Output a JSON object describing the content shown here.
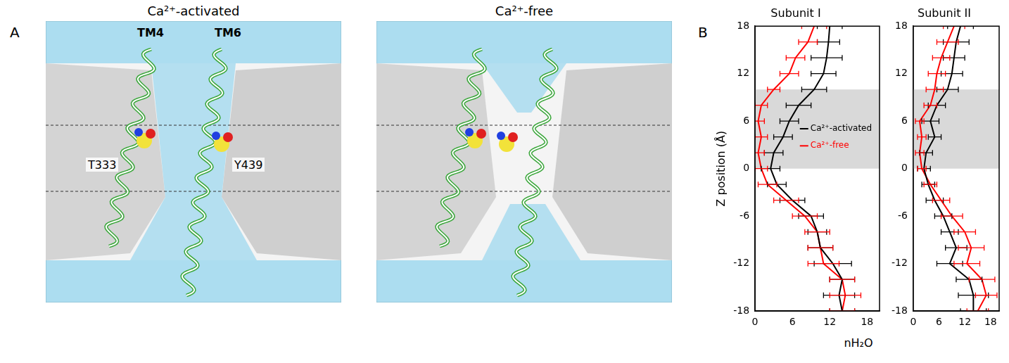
{
  "panel_a": {
    "label": "A",
    "images": [
      {
        "title": "Ca²⁺-activated",
        "helix_labels": [
          "TM4",
          "TM6"
        ],
        "residue_labels": [
          "T333",
          "Y439"
        ]
      },
      {
        "title": "Ca²⁺-free"
      }
    ]
  },
  "panel_b": {
    "label": "B",
    "xlabel": "nH₂O"
  },
  "chart_data": [
    {
      "type": "line",
      "title": "Subunit I",
      "ylabel": "Z position (Å)",
      "y": [
        18,
        16,
        14,
        12,
        10,
        8,
        6,
        4,
        2,
        0,
        -2,
        -4,
        -6,
        -8,
        -10,
        -12,
        -14,
        -16,
        -18
      ],
      "xlim": [
        0,
        20
      ],
      "xticks": [
        0,
        6,
        12,
        18
      ],
      "ylim": [
        -18,
        18
      ],
      "yticks": [
        -18,
        -12,
        -6,
        0,
        6,
        12,
        18
      ],
      "highlight_yrange": [
        0,
        10
      ],
      "legend": "right",
      "series": [
        {
          "name": "Ca²⁺-activated",
          "color": "#000000",
          "values": [
            12,
            11.8,
            11.5,
            11,
            9.5,
            7,
            5.5,
            4.5,
            3,
            2.5,
            3.5,
            6,
            9,
            10,
            10.5,
            12.5,
            14,
            13.5,
            14
          ],
          "errors": [
            2,
            1.8,
            2.5,
            2,
            2,
            2,
            1.5,
            1.5,
            1.5,
            1.5,
            1.5,
            2,
            2,
            1.5,
            2,
            3,
            2,
            2.5,
            2
          ]
        },
        {
          "name": "Ca²⁺-free",
          "color": "#ff0000",
          "values": [
            9.5,
            8.5,
            6.5,
            5.5,
            3,
            1,
            0.5,
            1,
            0.5,
            1,
            2,
            5,
            8,
            10,
            10.5,
            11,
            14,
            14.5,
            14
          ],
          "errors": [
            2,
            1.5,
            1.5,
            1.5,
            1,
            1,
            1,
            1,
            1,
            1,
            1.5,
            2,
            2,
            2,
            2,
            2.5,
            2,
            2.5,
            2
          ]
        }
      ]
    },
    {
      "type": "line",
      "title": "Subunit II",
      "y": [
        18,
        16,
        14,
        12,
        10,
        8,
        6,
        4,
        2,
        0,
        -2,
        -4,
        -6,
        -8,
        -10,
        -12,
        -14,
        -16,
        -18
      ],
      "xlim": [
        0,
        20
      ],
      "xticks": [
        0,
        6,
        12,
        18
      ],
      "ylim": [
        -18,
        18
      ],
      "yticks": [
        -18,
        -12,
        -6,
        0,
        6,
        12,
        18
      ],
      "highlight_yrange": [
        0,
        10
      ],
      "series": [
        {
          "name": "Ca²⁺-activated",
          "color": "#000000",
          "values": [
            11,
            10,
            9.5,
            9,
            8,
            5.5,
            4,
            5,
            3,
            2.5,
            3.5,
            5,
            7,
            8.5,
            10,
            8.5,
            13,
            14,
            14
          ],
          "errors": [
            3,
            3,
            2.5,
            2.5,
            2.5,
            2,
            2,
            1.5,
            1.5,
            1.5,
            1.5,
            2,
            2,
            2,
            2.5,
            3,
            3,
            3.5,
            3
          ]
        },
        {
          "name": "Ca²⁺-free",
          "color": "#ff0000",
          "values": [
            9.5,
            8,
            6.5,
            5.5,
            5,
            4,
            1.5,
            2,
            1.5,
            2,
            4,
            6.5,
            9,
            12,
            13.5,
            12.5,
            16,
            17,
            15
          ],
          "errors": [
            2.5,
            2.5,
            2,
            2,
            2,
            1.5,
            1,
            1,
            1,
            1,
            1.5,
            2,
            2.5,
            2.5,
            3,
            3,
            3,
            2.5,
            2.5
          ]
        }
      ]
    }
  ]
}
